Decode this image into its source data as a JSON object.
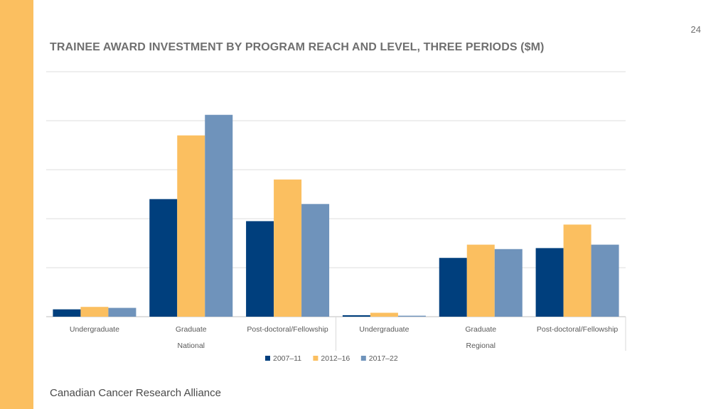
{
  "page": {
    "number": "24",
    "footer": "Canadian Cancer Research Alliance"
  },
  "colors": {
    "accent": "#fbbf60",
    "s1": "#003f7d",
    "s2": "#fbbf60",
    "s3": "#6f93bb",
    "grid": "#dedede"
  },
  "chart_data": {
    "type": "bar",
    "title": "TRAINEE AWARD INVESTMENT BY PROGRAM REACH AND LEVEL, THREE PERIODS ($M)",
    "groups": [
      {
        "label": "National",
        "categories": [
          "Undergraduate",
          "Graduate",
          "Post-doctoral/Fellowship"
        ]
      },
      {
        "label": "Regional",
        "categories": [
          "Undergraduate",
          "Graduate",
          "Post-doctoral/Fellowship"
        ]
      }
    ],
    "series": [
      {
        "name": "2007–11",
        "values": [
          1.5,
          24,
          19.5,
          0.3,
          12,
          14
        ]
      },
      {
        "name": "2012–16",
        "values": [
          2.0,
          37,
          28,
          0.8,
          14.7,
          18.8
        ]
      },
      {
        "name": "2017–22",
        "values": [
          1.8,
          41.2,
          23,
          0.2,
          13.8,
          14.7
        ]
      }
    ],
    "ylim": [
      0,
      50
    ],
    "grid": true,
    "y_tick_labels_visible": false,
    "legend": "bottom",
    "xlabel": "",
    "ylabel": ""
  }
}
